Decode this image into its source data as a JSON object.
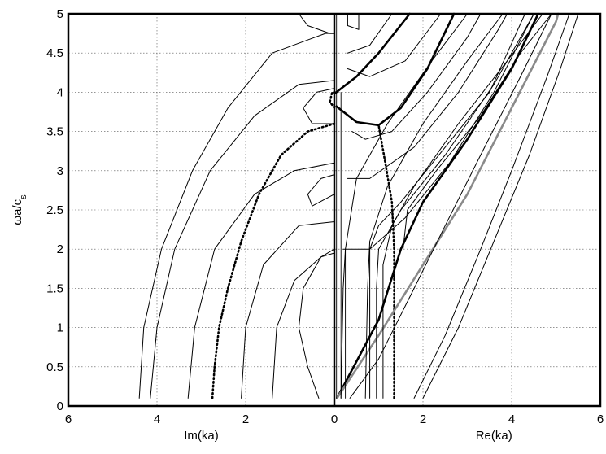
{
  "chart_data": {
    "type": "line",
    "title": "",
    "ylabel_main": "ωa/c",
    "ylabel_sub": "s",
    "xlabel_left": "Im(ka)",
    "xlabel_right": "Re(ka)",
    "xlim": [
      -6,
      6
    ],
    "ylim": [
      0,
      5
    ],
    "grid": true,
    "x_ticks": [
      {
        "v": -6,
        "label": "6"
      },
      {
        "v": -4,
        "label": "4"
      },
      {
        "v": -2,
        "label": "2"
      },
      {
        "v": 0,
        "label": "0"
      },
      {
        "v": 2,
        "label": "2"
      },
      {
        "v": 4,
        "label": "4"
      },
      {
        "v": 6,
        "label": "6"
      }
    ],
    "y_ticks": [
      {
        "v": 0,
        "label": "0"
      },
      {
        "v": 0.5,
        "label": "0.5"
      },
      {
        "v": 1,
        "label": "1"
      },
      {
        "v": 1.5,
        "label": "1.5"
      },
      {
        "v": 2,
        "label": "2"
      },
      {
        "v": 2.5,
        "label": "2.5"
      },
      {
        "v": 3,
        "label": "3"
      },
      {
        "v": 3.5,
        "label": "3.5"
      },
      {
        "v": 4,
        "label": "4"
      },
      {
        "v": 4.5,
        "label": "4.5"
      },
      {
        "v": 5,
        "label": "5"
      }
    ],
    "series": [
      {
        "style": "thin",
        "color": "#000000",
        "points": [
          [
            -4.4,
            0.1
          ],
          [
            -4.3,
            1.0
          ],
          [
            -3.9,
            2.0
          ],
          [
            -3.2,
            3.0
          ],
          [
            -2.4,
            3.8
          ],
          [
            -1.4,
            4.5
          ],
          [
            -0.2,
            4.75
          ],
          [
            0,
            4.75
          ]
        ]
      },
      {
        "style": "thin",
        "color": "#000000",
        "points": [
          [
            -4.15,
            0.1
          ],
          [
            -4.0,
            1.0
          ],
          [
            -3.6,
            2.0
          ],
          [
            -2.8,
            3.0
          ],
          [
            -1.8,
            3.7
          ],
          [
            -0.8,
            4.1
          ],
          [
            0,
            4.15
          ]
        ]
      },
      {
        "style": "thin",
        "color": "#000000",
        "points": [
          [
            -3.3,
            0.1
          ],
          [
            -3.15,
            1.0
          ],
          [
            -2.7,
            2.0
          ],
          [
            -1.8,
            2.7
          ],
          [
            -0.9,
            3.0
          ],
          [
            0,
            3.1
          ]
        ]
      },
      {
        "style": "thin",
        "color": "#000000",
        "points": [
          [
            -2.1,
            0.1
          ],
          [
            -2.0,
            1.0
          ],
          [
            -1.6,
            1.8
          ],
          [
            -0.8,
            2.3
          ],
          [
            0,
            2.35
          ]
        ]
      },
      {
        "style": "thin",
        "color": "#000000",
        "points": [
          [
            -1.4,
            0.1
          ],
          [
            -1.3,
            1.0
          ],
          [
            -0.9,
            1.6
          ],
          [
            -0.3,
            1.9
          ],
          [
            0,
            1.95
          ]
        ]
      },
      {
        "style": "thin",
        "color": "#000000",
        "points": [
          [
            -0.35,
            0.1
          ],
          [
            -0.6,
            0.5
          ],
          [
            -0.8,
            1.0
          ],
          [
            -0.7,
            1.5
          ],
          [
            -0.3,
            1.9
          ],
          [
            0,
            2.0
          ]
        ]
      },
      {
        "style": "thin",
        "color": "#000000",
        "points": [
          [
            0,
            2.7
          ],
          [
            -0.5,
            2.55
          ],
          [
            -0.6,
            2.7
          ],
          [
            -0.3,
            2.9
          ],
          [
            0,
            2.95
          ]
        ]
      },
      {
        "style": "thin",
        "color": "#000000",
        "points": [
          [
            0,
            3.6
          ],
          [
            -0.5,
            3.6
          ],
          [
            -0.7,
            3.8
          ],
          [
            -0.4,
            4.0
          ],
          [
            0,
            4.05
          ]
        ]
      },
      {
        "style": "thin",
        "color": "#000000",
        "points": [
          [
            -0.8,
            5.0
          ],
          [
            -0.6,
            4.85
          ],
          [
            -0.1,
            4.75
          ],
          [
            0,
            4.75
          ]
        ]
      },
      {
        "style": "thin",
        "color": "#000000",
        "points": [
          [
            0.3,
            5.0
          ],
          [
            0.3,
            4.85
          ],
          [
            0.55,
            4.8
          ],
          [
            0.55,
            5.0
          ]
        ]
      },
      {
        "style": "dotted",
        "color": "#000000",
        "points": [
          [
            -2.75,
            0.1
          ],
          [
            -2.7,
            0.5
          ],
          [
            -2.6,
            1.0
          ],
          [
            -2.4,
            1.5
          ],
          [
            -2.1,
            2.1
          ],
          [
            -1.7,
            2.7
          ],
          [
            -1.2,
            3.2
          ],
          [
            -0.6,
            3.5
          ],
          [
            0,
            3.6
          ]
        ]
      },
      {
        "style": "dotted",
        "color": "#000000",
        "points": [
          [
            0,
            3.8
          ],
          [
            -0.1,
            3.88
          ],
          [
            -0.05,
            4.0
          ],
          [
            0,
            4.0
          ]
        ]
      },
      {
        "style": "dotted",
        "color": "#000000",
        "points": [
          [
            1.35,
            0.1
          ],
          [
            1.35,
            1.0
          ],
          [
            1.35,
            2.0
          ],
          [
            1.3,
            2.6
          ],
          [
            1.15,
            3.1
          ],
          [
            1.0,
            3.58
          ]
        ]
      },
      {
        "style": "thick",
        "color": "#000000",
        "points": [
          [
            0.06,
            0.1
          ],
          [
            1.0,
            1.1
          ],
          [
            1.5,
            2.0
          ],
          [
            2.0,
            2.6
          ],
          [
            3.0,
            3.4
          ],
          [
            4.0,
            4.3
          ],
          [
            4.6,
            5.0
          ]
        ]
      },
      {
        "style": "gray",
        "color": "#8a8a8a",
        "points": [
          [
            0.06,
            0.1
          ],
          [
            1.0,
            0.9
          ],
          [
            2.0,
            1.8
          ],
          [
            3.0,
            2.7
          ],
          [
            4.0,
            3.8
          ],
          [
            5.0,
            4.9
          ],
          [
            5.05,
            5.0
          ]
        ]
      },
      {
        "style": "thick",
        "color": "#000000",
        "points": [
          [
            0,
            3.98
          ],
          [
            0.5,
            4.2
          ],
          [
            1.0,
            4.5
          ],
          [
            1.7,
            5.0
          ]
        ]
      },
      {
        "style": "thick",
        "color": "#000000",
        "points": [
          [
            0.05,
            3.82
          ],
          [
            0.5,
            3.62
          ],
          [
            1.0,
            3.58
          ],
          [
            1.5,
            3.8
          ],
          [
            2.1,
            4.3
          ],
          [
            2.7,
            5.0
          ]
        ]
      },
      {
        "style": "thin",
        "color": "#000000",
        "points": [
          [
            0.8,
            0.1
          ],
          [
            0.8,
            1.5
          ],
          [
            0.8,
            2.0
          ],
          [
            1.0,
            2.3
          ],
          [
            1.5,
            2.6
          ],
          [
            2.5,
            3.3
          ],
          [
            3.5,
            4.0
          ],
          [
            4.3,
            5.0
          ]
        ]
      },
      {
        "style": "thin",
        "color": "#000000",
        "points": [
          [
            0.95,
            0.1
          ],
          [
            0.95,
            1.5
          ],
          [
            1.0,
            2.0
          ],
          [
            1.5,
            2.5
          ],
          [
            2.5,
            3.2
          ],
          [
            3.6,
            4.1
          ],
          [
            4.5,
            5.0
          ]
        ]
      },
      {
        "style": "thin",
        "color": "#000000",
        "points": [
          [
            1.1,
            0.1
          ],
          [
            1.1,
            1.8
          ],
          [
            1.3,
            2.3
          ],
          [
            1.8,
            2.8
          ],
          [
            2.8,
            3.6
          ],
          [
            3.9,
            4.4
          ],
          [
            4.7,
            5.0
          ]
        ]
      },
      {
        "style": "thin",
        "color": "#000000",
        "points": [
          [
            0.7,
            0.1
          ],
          [
            0.75,
            1.5
          ],
          [
            0.8,
            2.1
          ],
          [
            1.2,
            2.8
          ],
          [
            2.0,
            3.6
          ],
          [
            3.0,
            4.4
          ],
          [
            3.8,
            5.0
          ]
        ]
      },
      {
        "style": "thin",
        "color": "#000000",
        "points": [
          [
            1.55,
            0.1
          ],
          [
            1.55,
            2.0
          ],
          [
            1.65,
            2.5
          ],
          [
            2.3,
            3.0
          ],
          [
            3.3,
            3.7
          ],
          [
            4.2,
            4.5
          ],
          [
            4.9,
            5.0
          ]
        ]
      },
      {
        "style": "thin",
        "color": "#000000",
        "points": [
          [
            0.15,
            0.1
          ],
          [
            0.2,
            1.5
          ],
          [
            0.25,
            2.0
          ],
          [
            0.5,
            2.9
          ],
          [
            1.2,
            3.6
          ],
          [
            2.2,
            4.4
          ],
          [
            3.0,
            5.0
          ]
        ]
      },
      {
        "style": "thin",
        "color": "#000000",
        "points": [
          [
            0.4,
            3.5
          ],
          [
            0.7,
            3.4
          ],
          [
            1.3,
            3.5
          ],
          [
            2.1,
            4.0
          ],
          [
            3.0,
            4.7
          ],
          [
            3.3,
            5.0
          ]
        ]
      },
      {
        "style": "thin",
        "color": "#000000",
        "points": [
          [
            0.3,
            4.3
          ],
          [
            0.8,
            4.2
          ],
          [
            1.6,
            4.4
          ],
          [
            2.4,
            5.0
          ]
        ]
      },
      {
        "style": "thin",
        "color": "#000000",
        "points": [
          [
            0.3,
            4.5
          ],
          [
            0.8,
            4.6
          ],
          [
            1.3,
            5.0
          ]
        ]
      },
      {
        "style": "thin",
        "color": "#000000",
        "points": [
          [
            0.3,
            2.9
          ],
          [
            0.8,
            2.9
          ],
          [
            1.8,
            3.3
          ],
          [
            2.8,
            4.0
          ],
          [
            3.7,
            4.8
          ],
          [
            3.9,
            5.0
          ]
        ]
      },
      {
        "style": "thin",
        "color": "#000000",
        "points": [
          [
            1.8,
            0.1
          ],
          [
            2.5,
            0.9
          ],
          [
            3.3,
            2.0
          ],
          [
            4.0,
            3.0
          ],
          [
            4.8,
            4.2
          ],
          [
            5.3,
            5.0
          ]
        ]
      },
      {
        "style": "thin",
        "color": "#000000",
        "points": [
          [
            2.0,
            0.1
          ],
          [
            2.8,
            1.0
          ],
          [
            3.6,
            2.1
          ],
          [
            4.4,
            3.2
          ],
          [
            5.1,
            4.3
          ],
          [
            5.5,
            5.0
          ]
        ]
      },
      {
        "style": "thin",
        "color": "#000000",
        "points": [
          [
            0.35,
            0.1
          ],
          [
            1.0,
            0.6
          ],
          [
            1.8,
            1.5
          ],
          [
            2.5,
            2.3
          ],
          [
            3.3,
            3.2
          ],
          [
            4.2,
            4.2
          ],
          [
            4.9,
            5.0
          ]
        ]
      },
      {
        "style": "thin",
        "color": "#000000",
        "points": [
          [
            0.2,
            2.0
          ],
          [
            0.8,
            2.0
          ],
          [
            1.6,
            2.4
          ],
          [
            2.6,
            3.1
          ],
          [
            3.6,
            4.0
          ],
          [
            4.5,
            5.0
          ]
        ]
      },
      {
        "style": "vthin",
        "color": "#000000",
        "points": [
          [
            0.05,
            0.1
          ],
          [
            0.05,
            5.0
          ]
        ]
      },
      {
        "style": "vthin",
        "color": "#000000",
        "points": [
          [
            0.15,
            0.1
          ],
          [
            0.15,
            4.0
          ]
        ]
      },
      {
        "style": "vthin",
        "color": "#000000",
        "points": [
          [
            0.25,
            0.1
          ],
          [
            0.25,
            2.0
          ]
        ]
      }
    ]
  }
}
